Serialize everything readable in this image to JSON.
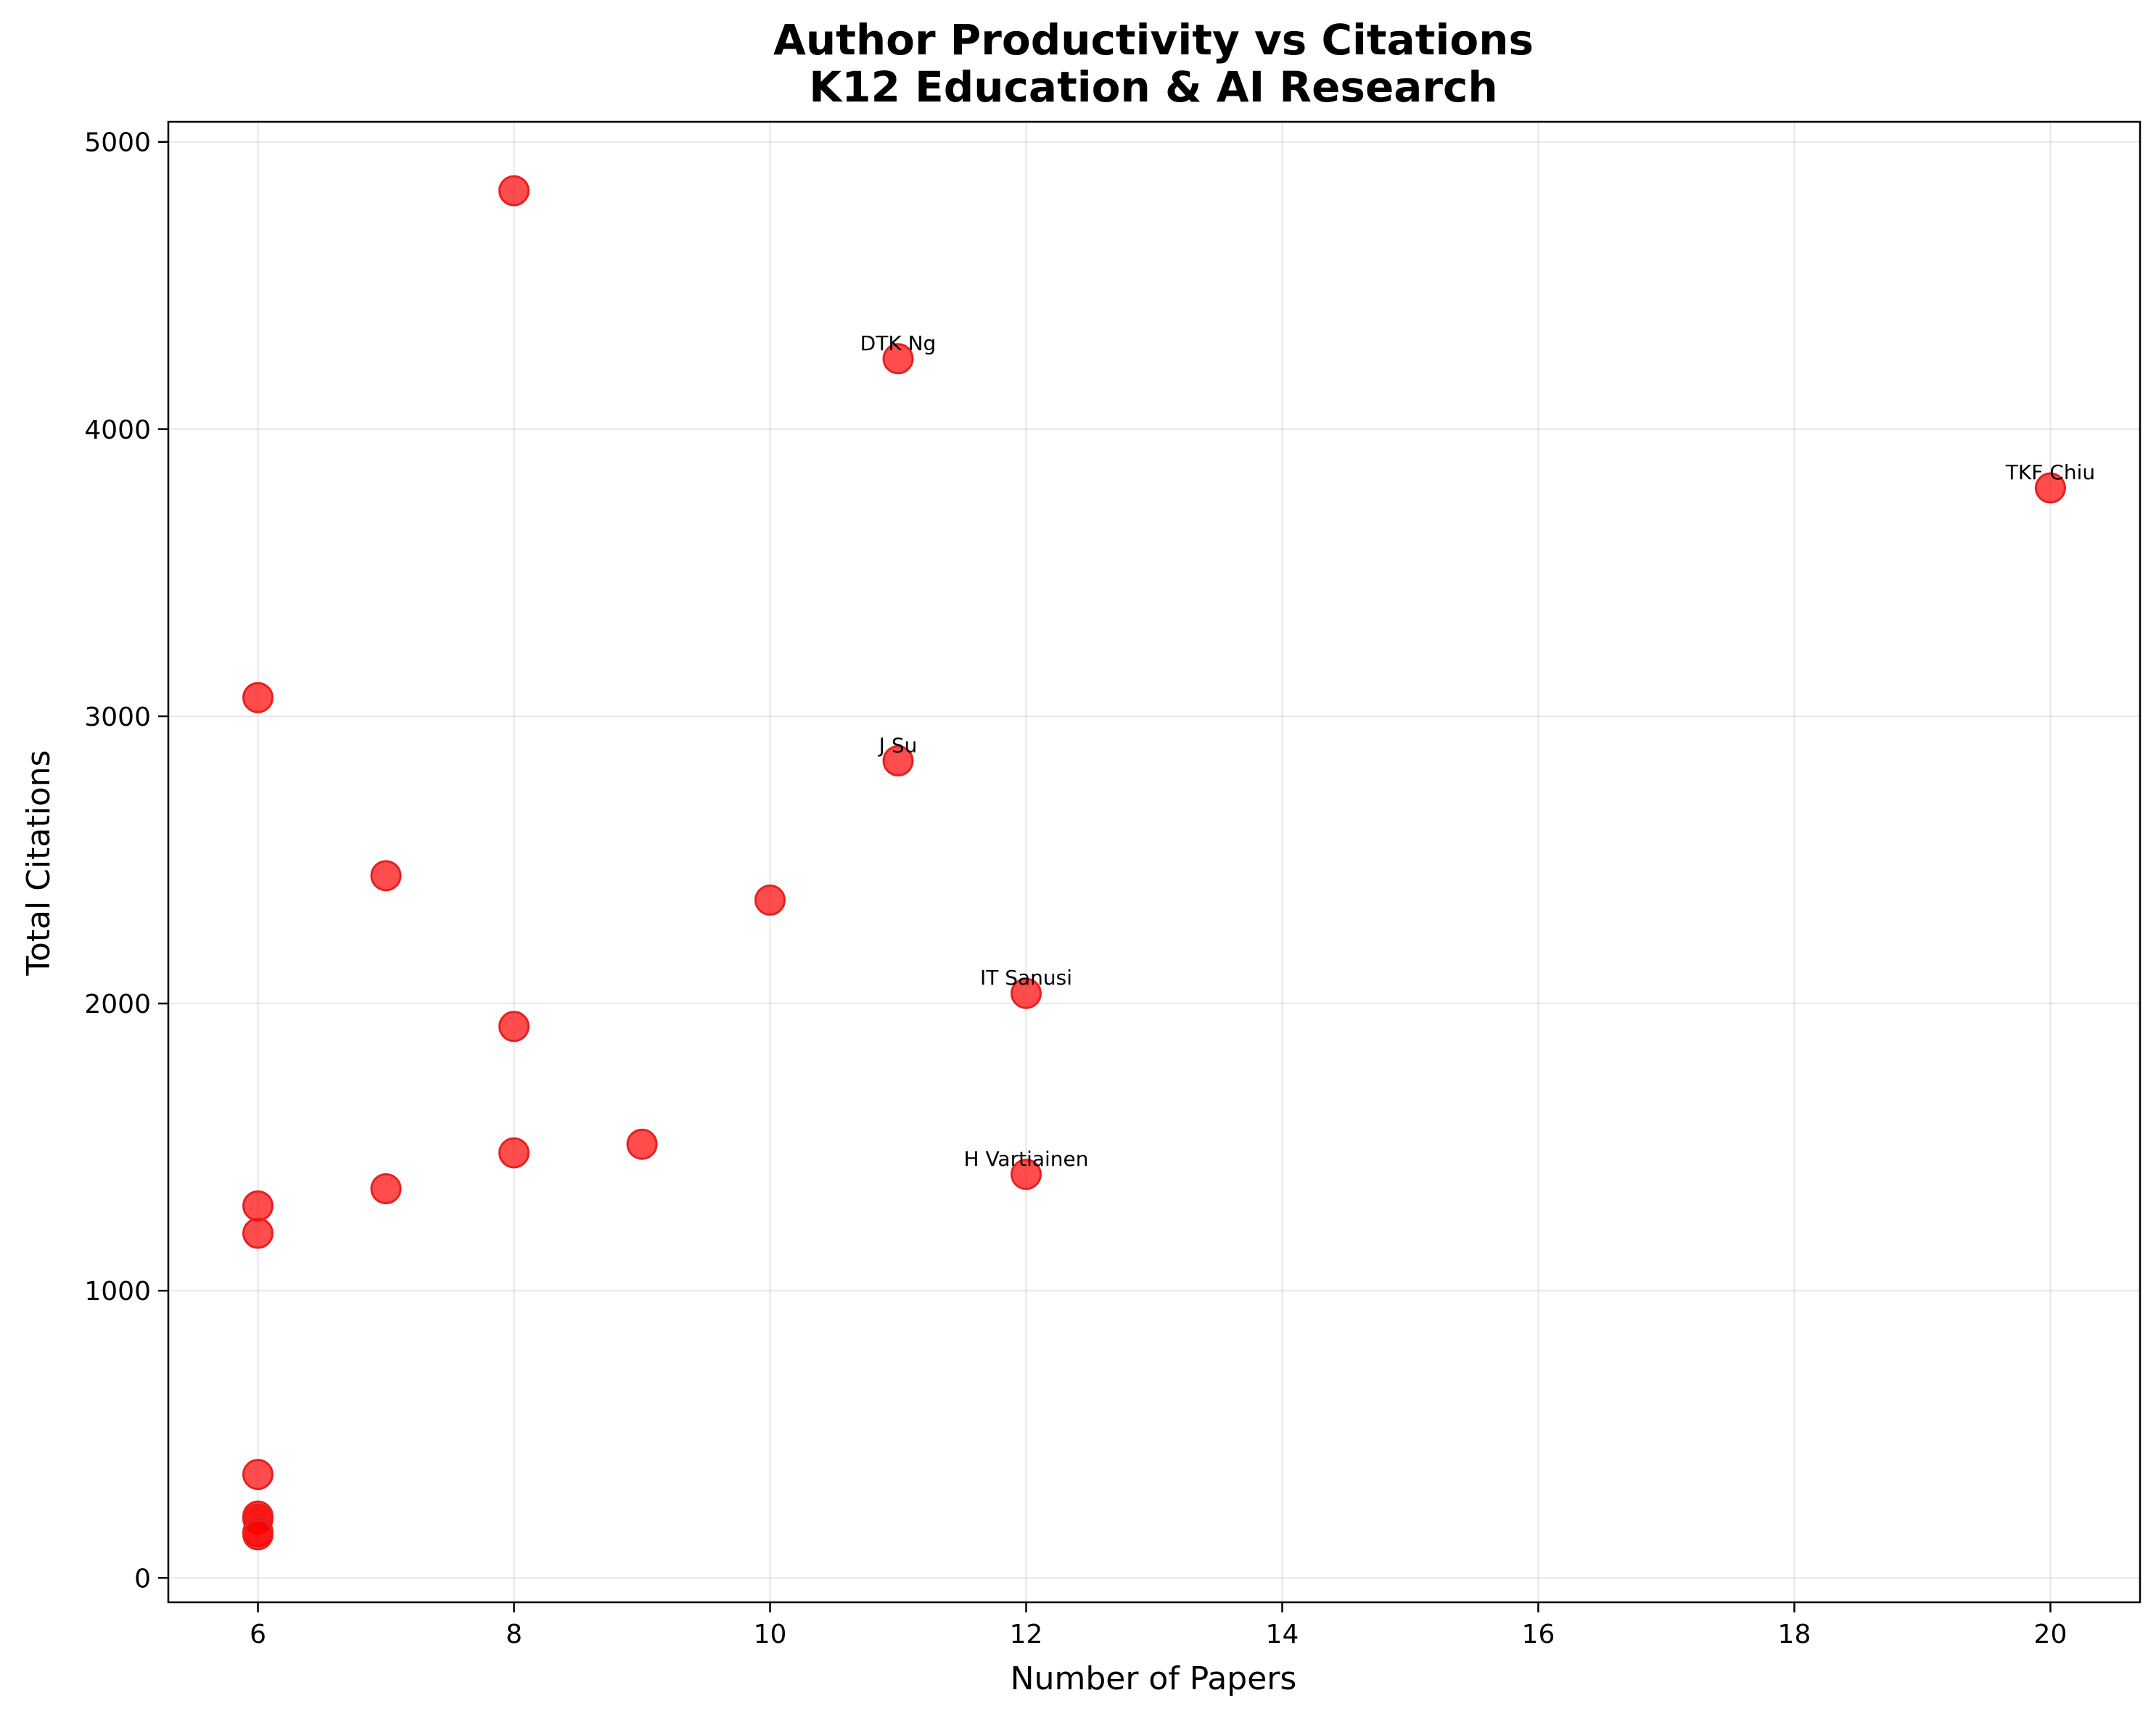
{
  "chart_data": {
    "type": "scatter",
    "title": "Author Productivity vs Citations",
    "subtitle": "K12 Education & AI Research",
    "xlabel": "Number of Papers",
    "ylabel": "Total Citations",
    "xlim": [
      5.3,
      20.7
    ],
    "ylim": [
      -85,
      5070
    ],
    "x_ticks": [
      6,
      8,
      10,
      12,
      14,
      16,
      18,
      20
    ],
    "y_ticks": [
      0,
      1000,
      2000,
      3000,
      4000,
      5000
    ],
    "grid": true,
    "marker_color": "#ff0000",
    "marker_edge_color": "#e62020",
    "points": [
      {
        "x": 8,
        "y": 4830,
        "label": ""
      },
      {
        "x": 11,
        "y": 4245,
        "label": "DTK Ng"
      },
      {
        "x": 20,
        "y": 3795,
        "label": "TKF Chiu"
      },
      {
        "x": 6,
        "y": 3065,
        "label": ""
      },
      {
        "x": 11,
        "y": 2845,
        "label": "J Su"
      },
      {
        "x": 7,
        "y": 2445,
        "label": ""
      },
      {
        "x": 10,
        "y": 2360,
        "label": ""
      },
      {
        "x": 12,
        "y": 2035,
        "label": "IT Sanusi"
      },
      {
        "x": 8,
        "y": 1920,
        "label": ""
      },
      {
        "x": 9,
        "y": 1510,
        "label": ""
      },
      {
        "x": 8,
        "y": 1480,
        "label": ""
      },
      {
        "x": 12,
        "y": 1405,
        "label": "H Vartiainen"
      },
      {
        "x": 7,
        "y": 1355,
        "label": ""
      },
      {
        "x": 6,
        "y": 1295,
        "label": ""
      },
      {
        "x": 6,
        "y": 1200,
        "label": ""
      },
      {
        "x": 6,
        "y": 360,
        "label": ""
      },
      {
        "x": 6,
        "y": 215,
        "label": ""
      },
      {
        "x": 6,
        "y": 205,
        "label": ""
      },
      {
        "x": 6,
        "y": 160,
        "label": ""
      },
      {
        "x": 6,
        "y": 150,
        "label": ""
      }
    ]
  }
}
